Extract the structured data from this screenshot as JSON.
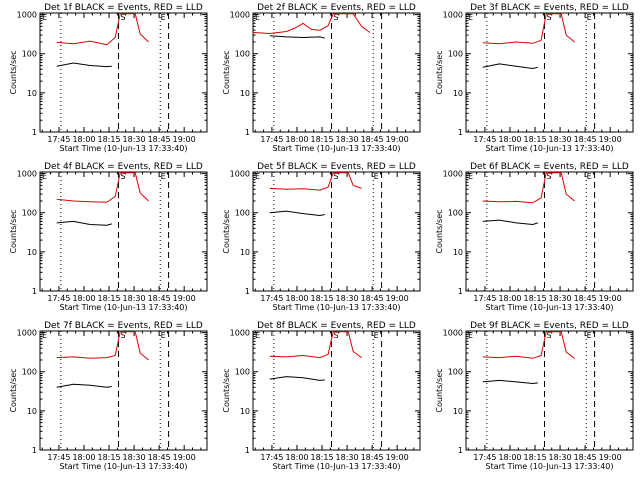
{
  "figure": {
    "xlabel": "Start Time (10-Jun-13 17:33:40)",
    "ylabel": "Counts/sec",
    "xticks": [
      "17:45",
      "18:00",
      "18:15",
      "18:30",
      "18:45",
      "19:00"
    ],
    "yticks": [
      "1",
      "10",
      "100",
      "1000"
    ]
  },
  "colors": {
    "events": "#000000",
    "lld": "#e00000"
  },
  "chart_data": [
    {
      "type": "line",
      "title": "Det 1f BLACK = Events, RED = LLD",
      "x_units": "minutes after 17:33:40",
      "xlim": [
        0,
        100
      ],
      "ylim": [
        1,
        1100
      ],
      "log_y": true,
      "series": [
        {
          "name": "Events",
          "x": [
            10,
            20,
            30,
            40,
            43
          ],
          "y": [
            48,
            58,
            50,
            47,
            48
          ]
        },
        {
          "name": "LLD",
          "x": [
            10,
            20,
            30,
            40,
            45,
            48,
            50,
            57,
            60,
            65
          ],
          "y": [
            195,
            180,
            210,
            170,
            260,
            1050,
            1050,
            1050,
            320,
            200
          ]
        }
      ],
      "vlines": [
        {
          "x": 12.5,
          "style": "dotted"
        },
        {
          "x": 47,
          "style": "dashed"
        },
        {
          "x": 72,
          "style": "dotted"
        },
        {
          "x": 77,
          "style": "dashed"
        }
      ],
      "flags": [
        {
          "x": 50,
          "text": "S"
        },
        {
          "x": 74,
          "text": "E"
        }
      ]
    },
    {
      "type": "line",
      "title": "Det 2f BLACK = Events, RED = LLD",
      "x_units": "minutes after 17:33:40",
      "xlim": [
        0,
        100
      ],
      "ylim": [
        1,
        1100
      ],
      "log_y": true,
      "series": [
        {
          "name": "Events",
          "x": [
            10,
            20,
            30,
            40,
            43
          ],
          "y": [
            290,
            270,
            260,
            270,
            250
          ]
        },
        {
          "name": "LLD",
          "x": [
            0,
            10,
            20,
            25,
            30,
            35,
            40,
            45,
            48,
            52,
            60,
            65,
            70
          ],
          "y": [
            350,
            330,
            370,
            450,
            600,
            420,
            400,
            520,
            1050,
            1050,
            1050,
            500,
            350
          ]
        }
      ],
      "vlines": [
        {
          "x": 12.5,
          "style": "dotted"
        },
        {
          "x": 47,
          "style": "dashed"
        },
        {
          "x": 72,
          "style": "dotted"
        },
        {
          "x": 77,
          "style": "dashed"
        }
      ],
      "flags": [
        {
          "x": 50,
          "text": "S"
        }
      ]
    },
    {
      "type": "line",
      "title": "Det 3f BLACK = Events, RED = LLD",
      "x_units": "minutes after 17:33:40",
      "xlim": [
        0,
        100
      ],
      "ylim": [
        1,
        1100
      ],
      "log_y": true,
      "series": [
        {
          "name": "Events",
          "x": [
            10,
            20,
            30,
            40,
            43
          ],
          "y": [
            45,
            55,
            48,
            42,
            45
          ]
        },
        {
          "name": "LLD",
          "x": [
            10,
            20,
            30,
            40,
            45,
            48,
            50,
            57,
            60,
            65
          ],
          "y": [
            190,
            180,
            200,
            185,
            220,
            1050,
            1050,
            1050,
            300,
            200
          ]
        }
      ],
      "vlines": [
        {
          "x": 12.5,
          "style": "dotted"
        },
        {
          "x": 47,
          "style": "dashed"
        },
        {
          "x": 72,
          "style": "dotted"
        },
        {
          "x": 77,
          "style": "dashed"
        }
      ],
      "flags": [
        {
          "x": 50,
          "text": "S"
        },
        {
          "x": 74,
          "text": "E"
        }
      ]
    },
    {
      "type": "line",
      "title": "Det 4f BLACK = Events, RED = LLD",
      "x_units": "minutes after 17:33:40",
      "xlim": [
        0,
        100
      ],
      "ylim": [
        1,
        1100
      ],
      "log_y": true,
      "series": [
        {
          "name": "Events",
          "x": [
            10,
            20,
            30,
            40,
            43
          ],
          "y": [
            55,
            60,
            50,
            48,
            52
          ]
        },
        {
          "name": "LLD",
          "x": [
            10,
            20,
            30,
            40,
            45,
            48,
            50,
            57,
            60,
            65
          ],
          "y": [
            220,
            200,
            190,
            185,
            260,
            1050,
            1050,
            1050,
            320,
            200
          ]
        }
      ],
      "vlines": [
        {
          "x": 12.5,
          "style": "dotted"
        },
        {
          "x": 47,
          "style": "dashed"
        },
        {
          "x": 72,
          "style": "dotted"
        },
        {
          "x": 77,
          "style": "dashed"
        }
      ],
      "flags": [
        {
          "x": 50,
          "text": "S"
        },
        {
          "x": 74,
          "text": "E"
        }
      ]
    },
    {
      "type": "line",
      "title": "Det 5f BLACK = Events, RED = LLD",
      "x_units": "minutes after 17:33:40",
      "xlim": [
        0,
        100
      ],
      "ylim": [
        1,
        1100
      ],
      "log_y": true,
      "series": [
        {
          "name": "Events",
          "x": [
            10,
            20,
            30,
            40,
            43
          ],
          "y": [
            100,
            110,
            95,
            85,
            90
          ]
        },
        {
          "name": "LLD",
          "x": [
            10,
            20,
            30,
            40,
            45,
            48,
            50,
            57,
            60,
            65
          ],
          "y": [
            420,
            400,
            410,
            380,
            450,
            1050,
            1050,
            1050,
            500,
            420
          ]
        }
      ],
      "vlines": [
        {
          "x": 12.5,
          "style": "dotted"
        },
        {
          "x": 47,
          "style": "dashed"
        },
        {
          "x": 72,
          "style": "dotted"
        },
        {
          "x": 77,
          "style": "dashed"
        }
      ],
      "flags": [
        {
          "x": 50,
          "text": "S"
        },
        {
          "x": 74,
          "text": "E"
        }
      ]
    },
    {
      "type": "line",
      "title": "Det 6f BLACK = Events, RED = LLD",
      "x_units": "minutes after 17:33:40",
      "xlim": [
        0,
        100
      ],
      "ylim": [
        1,
        1100
      ],
      "log_y": true,
      "series": [
        {
          "name": "Events",
          "x": [
            10,
            20,
            30,
            40,
            43
          ],
          "y": [
            60,
            65,
            55,
            50,
            55
          ]
        },
        {
          "name": "LLD",
          "x": [
            10,
            20,
            30,
            40,
            45,
            48,
            50,
            57,
            60,
            65
          ],
          "y": [
            200,
            190,
            195,
            180,
            240,
            1050,
            1050,
            1050,
            300,
            200
          ]
        }
      ],
      "vlines": [
        {
          "x": 12.5,
          "style": "dotted"
        },
        {
          "x": 47,
          "style": "dashed"
        },
        {
          "x": 72,
          "style": "dotted"
        },
        {
          "x": 77,
          "style": "dashed"
        }
      ],
      "flags": [
        {
          "x": 50,
          "text": "S"
        },
        {
          "x": 74,
          "text": "E"
        }
      ]
    },
    {
      "type": "line",
      "title": "Det 7f BLACK = Events, RED = LLD",
      "x_units": "minutes after 17:33:40",
      "xlim": [
        0,
        100
      ],
      "ylim": [
        1,
        1100
      ],
      "log_y": true,
      "series": [
        {
          "name": "Events",
          "x": [
            10,
            20,
            30,
            40,
            43
          ],
          "y": [
            40,
            48,
            45,
            40,
            42
          ]
        },
        {
          "name": "LLD",
          "x": [
            10,
            20,
            30,
            40,
            45,
            48,
            50,
            57,
            60,
            65
          ],
          "y": [
            230,
            240,
            220,
            230,
            260,
            1050,
            1050,
            1050,
            300,
            200
          ]
        }
      ],
      "vlines": [
        {
          "x": 12.5,
          "style": "dotted"
        },
        {
          "x": 47,
          "style": "dashed"
        },
        {
          "x": 72,
          "style": "dotted"
        },
        {
          "x": 77,
          "style": "dashed"
        }
      ],
      "flags": [
        {
          "x": 50,
          "text": "S"
        },
        {
          "x": 74,
          "text": "E"
        }
      ]
    },
    {
      "type": "line",
      "title": "Det 8f BLACK = Events, RED = LLD",
      "x_units": "minutes after 17:33:40",
      "xlim": [
        0,
        100
      ],
      "ylim": [
        1,
        1100
      ],
      "log_y": true,
      "series": [
        {
          "name": "Events",
          "x": [
            10,
            20,
            30,
            40,
            43
          ],
          "y": [
            65,
            75,
            70,
            60,
            62
          ]
        },
        {
          "name": "LLD",
          "x": [
            10,
            20,
            30,
            40,
            45,
            48,
            50,
            57,
            60,
            65
          ],
          "y": [
            250,
            240,
            260,
            230,
            280,
            1050,
            1050,
            1050,
            330,
            230
          ]
        }
      ],
      "vlines": [
        {
          "x": 12.5,
          "style": "dotted"
        },
        {
          "x": 47,
          "style": "dashed"
        },
        {
          "x": 72,
          "style": "dotted"
        },
        {
          "x": 77,
          "style": "dashed"
        }
      ],
      "flags": [
        {
          "x": 50,
          "text": "S"
        },
        {
          "x": 74,
          "text": "E"
        }
      ]
    },
    {
      "type": "line",
      "title": "Det 9f BLACK = Events, RED = LLD",
      "x_units": "minutes after 17:33:40",
      "xlim": [
        0,
        100
      ],
      "ylim": [
        1,
        1100
      ],
      "log_y": true,
      "series": [
        {
          "name": "Events",
          "x": [
            10,
            20,
            30,
            40,
            43
          ],
          "y": [
            55,
            60,
            55,
            50,
            52
          ]
        },
        {
          "name": "LLD",
          "x": [
            10,
            20,
            30,
            40,
            45,
            48,
            50,
            57,
            60,
            65
          ],
          "y": [
            240,
            230,
            250,
            220,
            260,
            1050,
            1050,
            1050,
            320,
            220
          ]
        }
      ],
      "vlines": [
        {
          "x": 12.5,
          "style": "dotted"
        },
        {
          "x": 47,
          "style": "dashed"
        },
        {
          "x": 72,
          "style": "dotted"
        },
        {
          "x": 77,
          "style": "dashed"
        }
      ],
      "flags": [
        {
          "x": 50,
          "text": "S"
        },
        {
          "x": 74,
          "text": "E"
        }
      ]
    }
  ]
}
